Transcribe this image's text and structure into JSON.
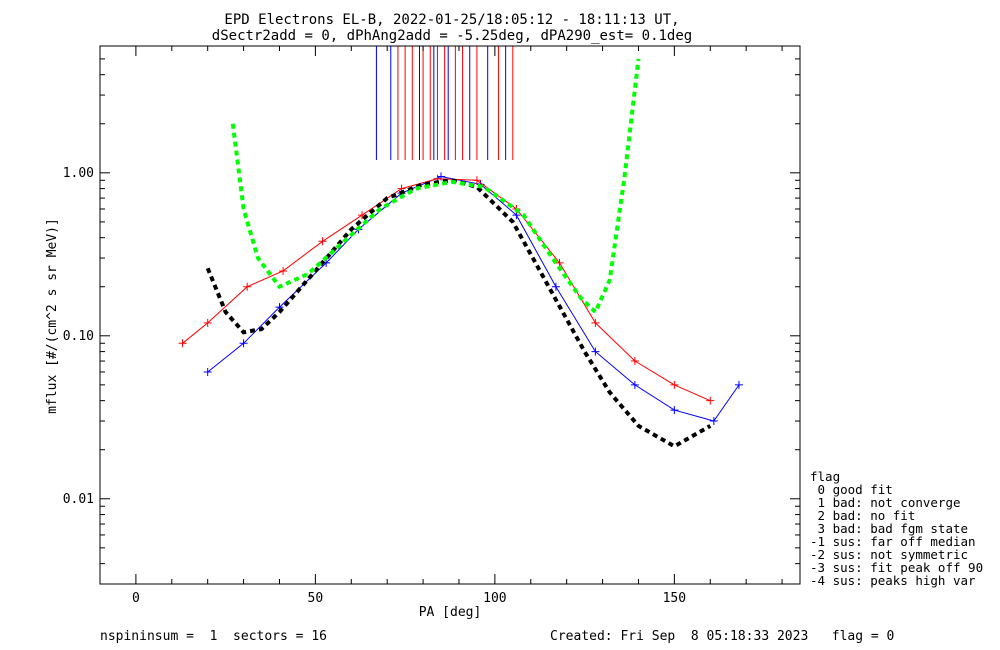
{
  "chart_data": {
    "type": "line",
    "title": "EPD Electrons EL-B, 2022-01-25/18:05:12 - 18:11:13 UT,",
    "subtitle": "dSectr2add = 0, dPhAng2add = -5.25deg, dPA290_est=   0.1deg",
    "xlabel": "PA [deg]",
    "ylabel": "mflux [#/(cm^2 s sr MeV)]",
    "xlim": [
      -10,
      185
    ],
    "ylim": [
      0.003,
      6
    ],
    "yscale": "log",
    "x_ticks": [
      0,
      50,
      100,
      150
    ],
    "x_tick_labels": [
      "0",
      "50",
      "100",
      "150"
    ],
    "y_ticks": [
      0.01,
      0.1,
      1.0
    ],
    "y_tick_labels": [
      "0.01",
      "0.10",
      "1.00"
    ],
    "grid": false,
    "series": [
      {
        "color": "#0000ff",
        "style": "thin line with plus markers",
        "x": [
          20,
          30,
          40,
          53,
          62,
          74,
          85,
          96,
          106,
          117,
          128,
          139,
          150,
          161,
          168
        ],
        "y": [
          0.06,
          0.09,
          0.15,
          0.28,
          0.45,
          0.75,
          0.95,
          0.85,
          0.55,
          0.2,
          0.08,
          0.05,
          0.035,
          0.03,
          0.05
        ]
      },
      {
        "color": "#ff0000",
        "style": "thin line with plus markers",
        "x": [
          13,
          20,
          31,
          41,
          52,
          63,
          74,
          84,
          95,
          106,
          118,
          128,
          139,
          150,
          160
        ],
        "y": [
          0.09,
          0.12,
          0.2,
          0.25,
          0.38,
          0.55,
          0.8,
          0.92,
          0.9,
          0.6,
          0.28,
          0.12,
          0.07,
          0.05,
          0.04
        ]
      },
      {
        "color": "#000000",
        "style": "thick dashed fit",
        "x": [
          20,
          25,
          30,
          35,
          40,
          50,
          60,
          70,
          80,
          88,
          95,
          105,
          115,
          125,
          132,
          140,
          150,
          160
        ],
        "y": [
          0.26,
          0.14,
          0.105,
          0.11,
          0.14,
          0.25,
          0.45,
          0.7,
          0.85,
          0.9,
          0.82,
          0.5,
          0.2,
          0.08,
          0.045,
          0.028,
          0.021,
          0.028
        ]
      },
      {
        "color": "#00ff00",
        "style": "thick dashed fit",
        "x": [
          27,
          30,
          34,
          40,
          48,
          58,
          68,
          78,
          88,
          97,
          108,
          116,
          124,
          128,
          132,
          136,
          140
        ],
        "y": [
          2.0,
          0.6,
          0.3,
          0.2,
          0.24,
          0.38,
          0.6,
          0.8,
          0.88,
          0.82,
          0.55,
          0.3,
          0.17,
          0.14,
          0.22,
          0.9,
          5.0
        ]
      }
    ],
    "vertical_markers": [
      {
        "color": "#0000ff",
        "x": [
          67,
          71,
          79,
          83,
          87,
          93,
          98,
          103
        ]
      },
      {
        "color": "#ff0000",
        "x": [
          73,
          75,
          77,
          80,
          82,
          84,
          86,
          89,
          91,
          95,
          101,
          105
        ]
      }
    ]
  },
  "flag_legend": {
    "title": "flag",
    "lines": [
      " 0 good fit",
      " 1 bad: not converge",
      " 2 bad: no fit",
      " 3 bad: bad fgm state",
      "-1 sus: far off median",
      "-2 sus: not symmetric",
      "-3 sus: fit peak off 90",
      "-4 sus: peaks high var"
    ]
  },
  "footer": {
    "left": "nspininsum =  1  sectors = 16",
    "right": "Created: Fri Sep  8 05:18:33 2023   flag = 0"
  }
}
